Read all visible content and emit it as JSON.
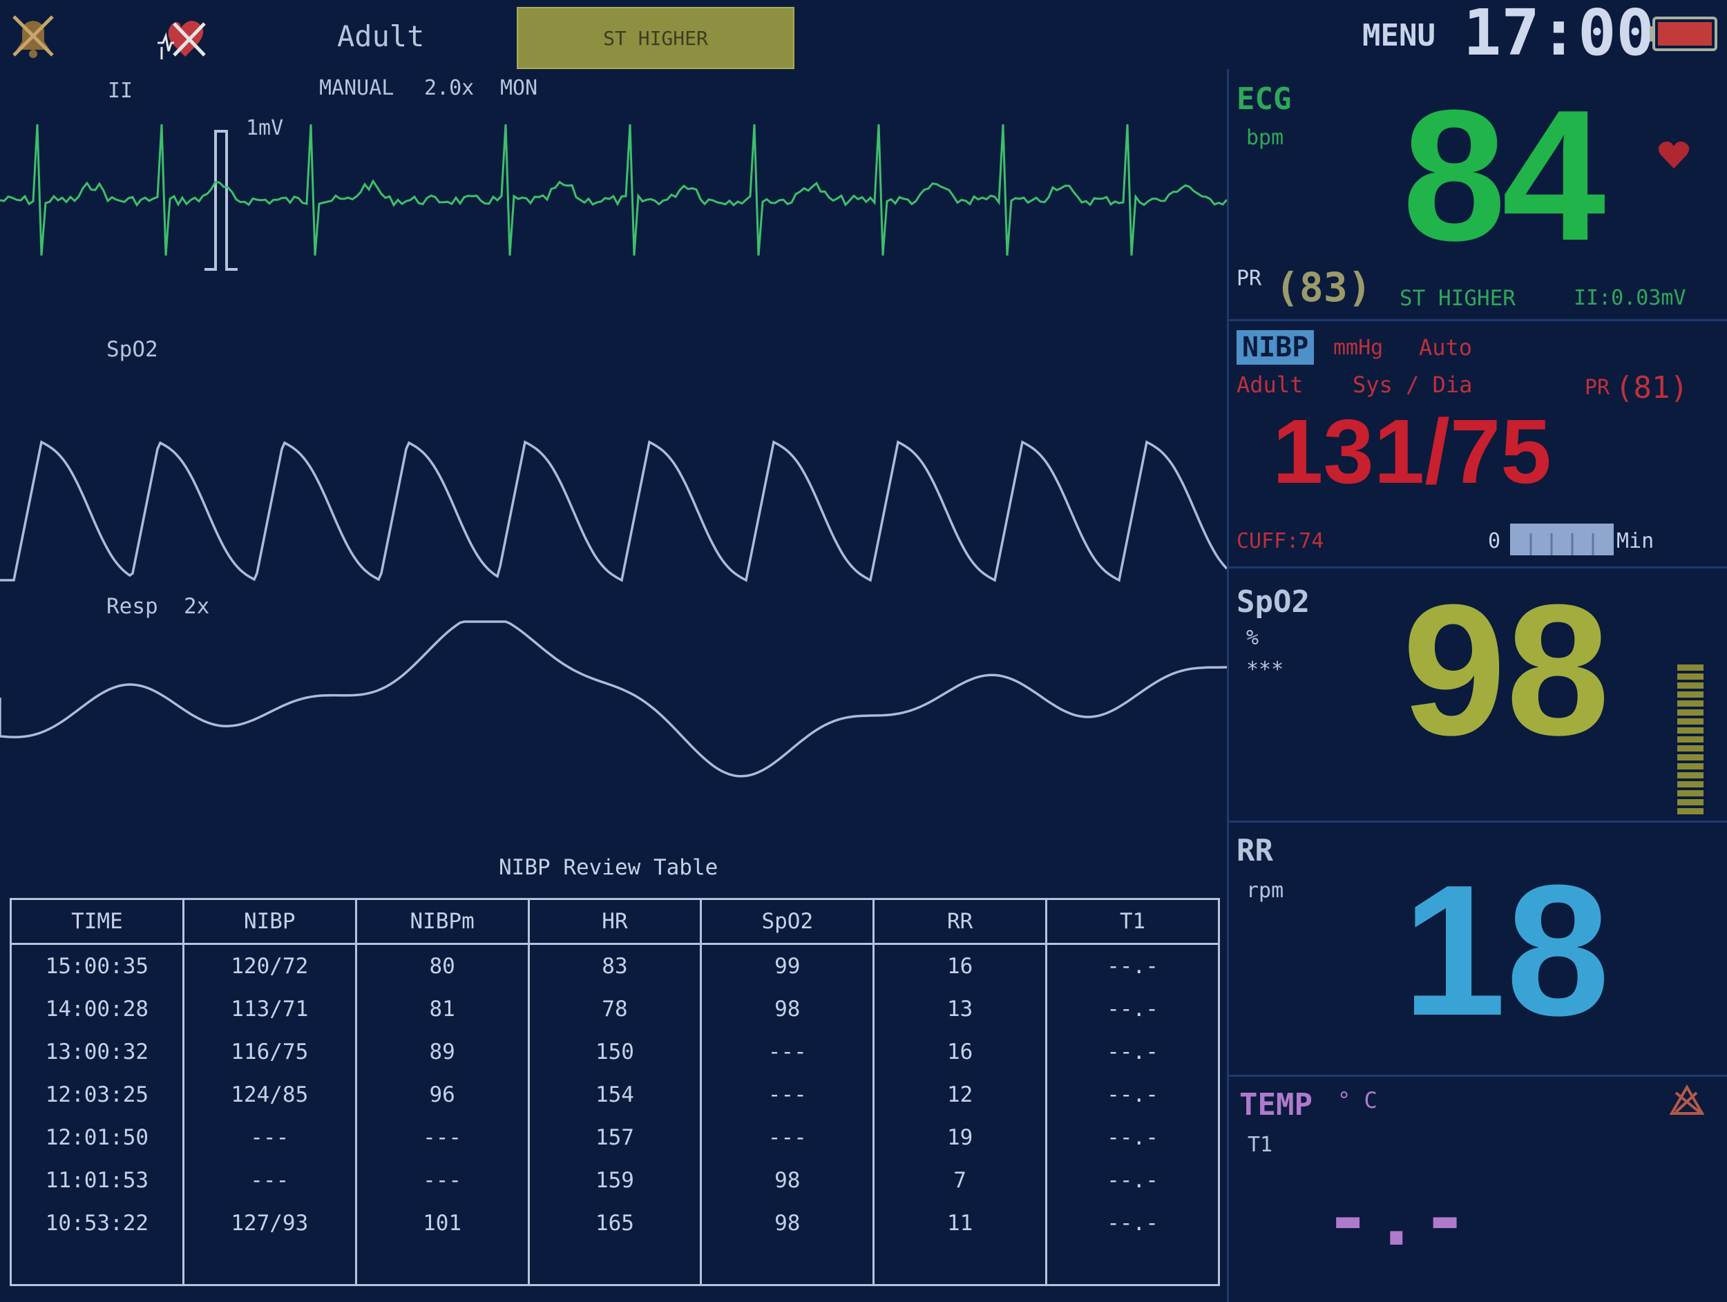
{
  "header": {
    "patient_type": "Adult",
    "alarm_banner": "ST HIGHER",
    "menu_label": "MENU",
    "clock": "17:00"
  },
  "waveforms": {
    "ecg": {
      "lead": "II",
      "mode": "MANUAL",
      "gain": "2.0x",
      "filter": "MON",
      "scale": "1mV",
      "color": "#3fbf6a"
    },
    "spo2": {
      "label": "SpO2",
      "color": "#aebbd6"
    },
    "resp": {
      "label": "Resp",
      "gain": "2x",
      "color": "#aebbd6"
    }
  },
  "ecg_panel": {
    "title": "ECG",
    "unit": "bpm",
    "value": "84",
    "color": "#20b44a",
    "pr_label": "PR",
    "pr_value": "(83)",
    "st_text": "ST HIGHER",
    "st_value": "II:0.03mV"
  },
  "nibp_panel": {
    "title": "NIBP",
    "unit": "mmHg",
    "mode": "Auto",
    "patient": "Adult",
    "sys_dia_label": "Sys / Dia",
    "pr_label": "PR",
    "pr_value": "(81)",
    "value": "131/75",
    "color": "#c8202e",
    "cuff": "CUFF:74",
    "interval_start": "0",
    "interval_unit": "Min"
  },
  "spo2_panel": {
    "title": "SpO2",
    "unit": "%",
    "quality": "***",
    "value": "98",
    "color": "#a3ad3e"
  },
  "rr_panel": {
    "title": "RR",
    "unit": "rpm",
    "value": "18",
    "color": "#3aa3d6"
  },
  "temp_panel": {
    "title": "TEMP",
    "unit": "° C",
    "channel": "T1",
    "value": "-.-",
    "color": "#b07acc"
  },
  "review_table": {
    "title": "NIBP Review Table",
    "columns": [
      "TIME",
      "NIBP",
      "NIBPm",
      "HR",
      "SpO2",
      "RR",
      "T1"
    ],
    "rows": [
      [
        "15:00:35",
        "120/72",
        "80",
        "83",
        "99",
        "16",
        "--.-"
      ],
      [
        "14:00:28",
        "113/71",
        "81",
        "78",
        "98",
        "13",
        "--.-"
      ],
      [
        "13:00:32",
        "116/75",
        "89",
        "150",
        "---",
        "16",
        "--.-"
      ],
      [
        "12:03:25",
        "124/85",
        "96",
        "154",
        "---",
        "12",
        "--.-"
      ],
      [
        "12:01:50",
        "---",
        "---",
        "157",
        "---",
        "19",
        "--.-"
      ],
      [
        "11:01:53",
        "---",
        "---",
        "159",
        "98",
        "7",
        "--.-"
      ],
      [
        "10:53:22",
        "127/93",
        "101",
        "165",
        "98",
        "11",
        "--.-"
      ]
    ]
  }
}
